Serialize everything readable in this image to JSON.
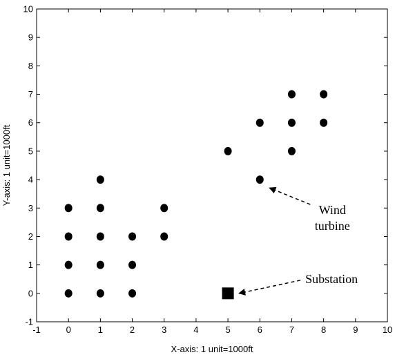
{
  "chart_data": {
    "type": "scatter",
    "title": "",
    "xlabel": "X-axis: 1 unit=1000ft",
    "ylabel": "Y-axis: 1 unit=1000ft",
    "xlim": [
      -1,
      10
    ],
    "ylim": [
      -1,
      10
    ],
    "xticks": [
      -1,
      0,
      1,
      2,
      3,
      4,
      5,
      6,
      7,
      8,
      9,
      10
    ],
    "yticks": [
      -1,
      0,
      1,
      2,
      3,
      4,
      5,
      6,
      7,
      8,
      9,
      10
    ],
    "grid": false,
    "series": [
      {
        "marker": "circle",
        "color": "#000000",
        "points": [
          [
            0,
            0
          ],
          [
            0,
            1
          ],
          [
            0,
            2
          ],
          [
            0,
            3
          ],
          [
            1,
            0
          ],
          [
            1,
            1
          ],
          [
            1,
            2
          ],
          [
            1,
            3
          ],
          [
            1,
            4
          ],
          [
            2,
            0
          ],
          [
            2,
            1
          ],
          [
            2,
            2
          ],
          [
            3,
            2
          ],
          [
            3,
            3
          ],
          [
            5,
            5
          ],
          [
            6,
            4
          ],
          [
            6,
            6
          ],
          [
            7,
            5
          ],
          [
            7,
            6
          ],
          [
            7,
            7
          ],
          [
            8,
            6
          ],
          [
            8,
            7
          ]
        ]
      },
      {
        "marker": "square",
        "color": "#000000",
        "points": [
          [
            5,
            0
          ]
        ]
      }
    ],
    "annotations": [
      {
        "lines": [
          "Wind",
          "turbine"
        ],
        "target": [
          6,
          4
        ]
      },
      {
        "lines": [
          "Substation"
        ],
        "target": [
          5,
          0
        ]
      }
    ]
  }
}
